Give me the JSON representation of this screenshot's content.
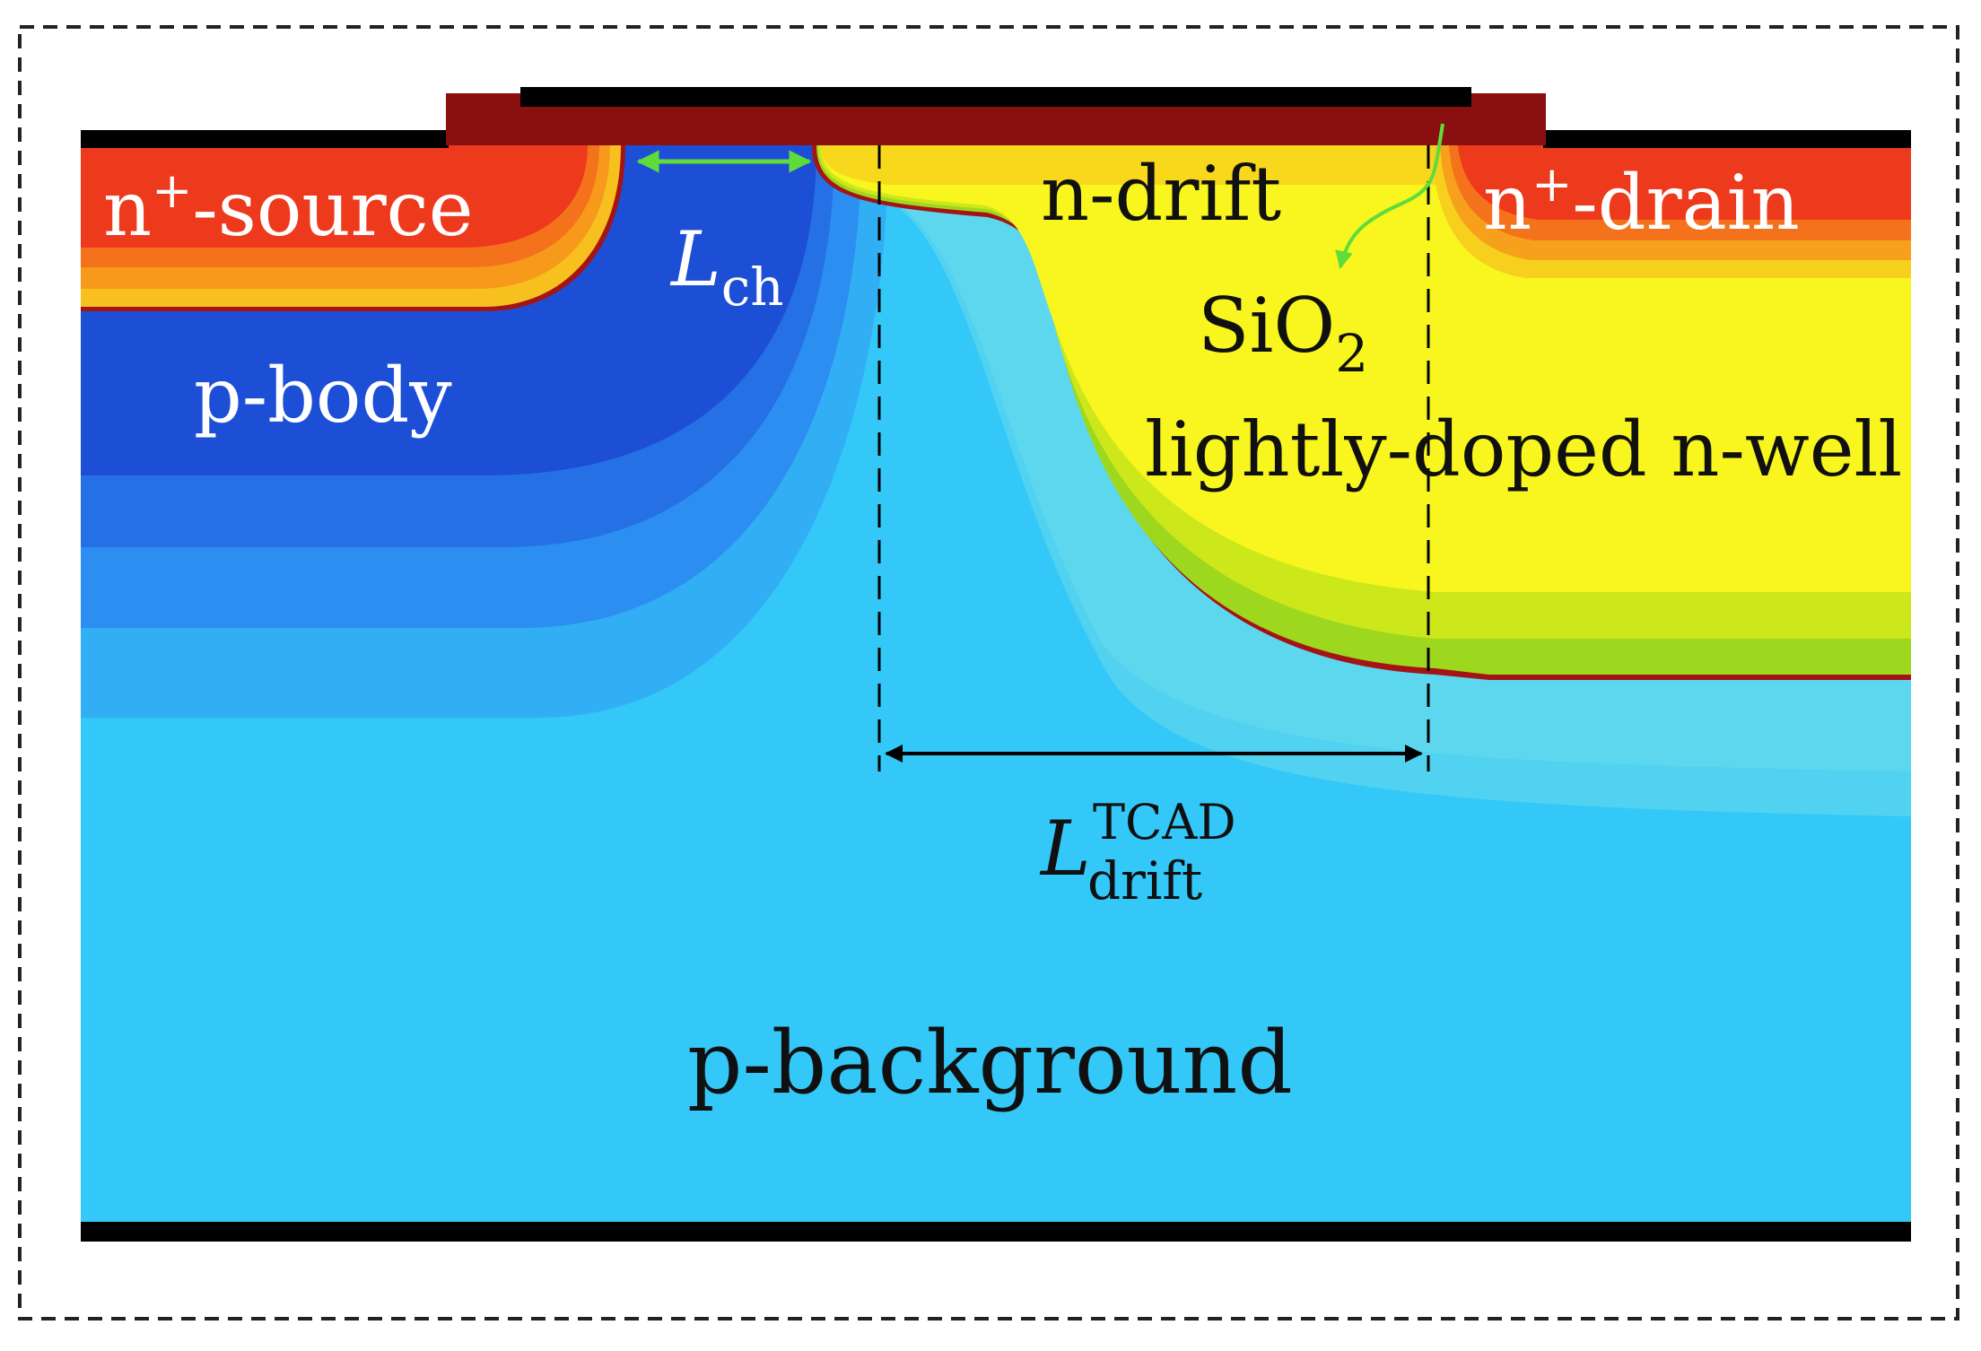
{
  "labels": {
    "n_source": {
      "base": "n",
      "sup": "+",
      "rest": "-source"
    },
    "n_drain": {
      "base": "n",
      "sup": "+",
      "rest": "-drain"
    },
    "n_drift": "n-drift",
    "p_body": "p-body",
    "p_background": "p-background",
    "lightly_doped": "lightly-doped n-well",
    "sio2": {
      "base": "SiO",
      "sub": "2"
    },
    "l_ch": {
      "base": "L",
      "sub": "ch"
    },
    "l_drift": {
      "base": "L",
      "sup": "TCAD",
      "sub": "drift"
    }
  },
  "colors": {
    "p_background": "#33c8f8",
    "p_body_dark": "#1d4fd6",
    "n_region": "#f8f61e",
    "n_plus": "#ee3a1c",
    "gate_oxide": "#8a1010",
    "metal": "#000000",
    "channel_arrow": "#5fdc3c",
    "white_text": "#ffffff",
    "dark_text": "#101010"
  }
}
